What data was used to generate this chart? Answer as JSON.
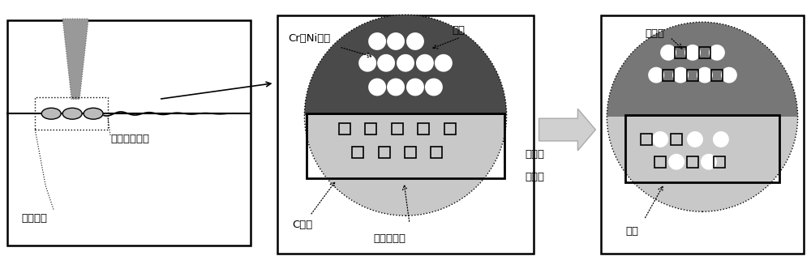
{
  "bg_color": "#ffffff",
  "dark_gray": "#555555",
  "med_gray": "#888888",
  "light_gray": "#cccccc",
  "panel2_label_cr": "Cr、Ni元素",
  "panel2_label_pool": "熔池",
  "panel2_label_c": "C元素",
  "panel2_label_base": "基体熔化区",
  "panel1_label_repair": "修复过程",
  "panel1_label_defect": "模具缺损区域",
  "panel3_label_repair": "修复区",
  "panel3_label_base": "基体",
  "middle_label_line1": "成分重",
  "middle_label_line2": "新配置"
}
